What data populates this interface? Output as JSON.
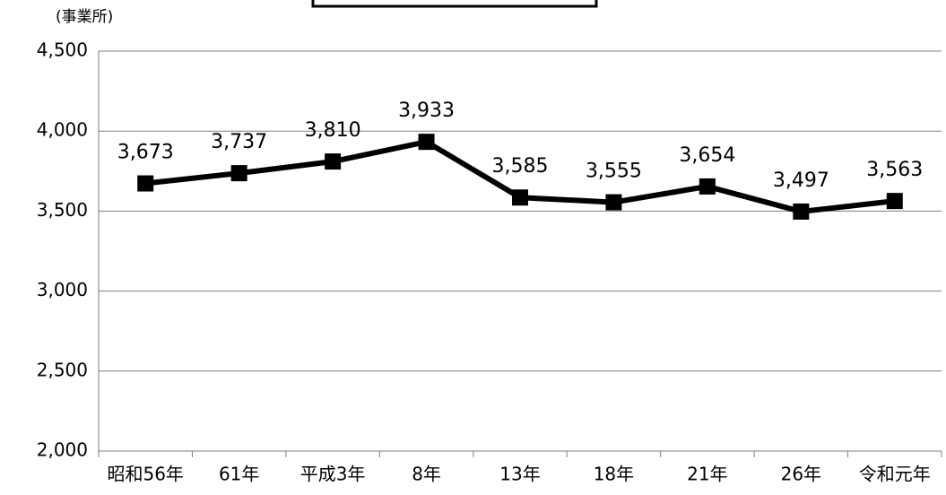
{
  "chart_data": {
    "type": "line",
    "y_axis_label": "(事業所)",
    "categories": [
      "昭和56年",
      "61年",
      "平成3年",
      "8年",
      "13年",
      "18年",
      "21年",
      "26年",
      "令和元年"
    ],
    "series": [
      {
        "name": null,
        "color": "#000000",
        "values": [
          3673,
          3737,
          3810,
          3933,
          3585,
          3555,
          3654,
          3497,
          3563
        ],
        "value_labels": [
          "3,673",
          "3,737",
          "3,810",
          "3,933",
          "3,585",
          "3,555",
          "3,654",
          "3,497",
          "3,563"
        ]
      }
    ],
    "ylim": [
      2000,
      4500
    ],
    "yticks": [
      {
        "value": 2000,
        "label": "2,000"
      },
      {
        "value": 2500,
        "label": "2,500"
      },
      {
        "value": 3000,
        "label": "3,000"
      },
      {
        "value": 3500,
        "label": "3,500"
      },
      {
        "value": 4000,
        "label": "4,000"
      },
      {
        "value": 4500,
        "label": "4,500"
      }
    ],
    "grid": true
  }
}
